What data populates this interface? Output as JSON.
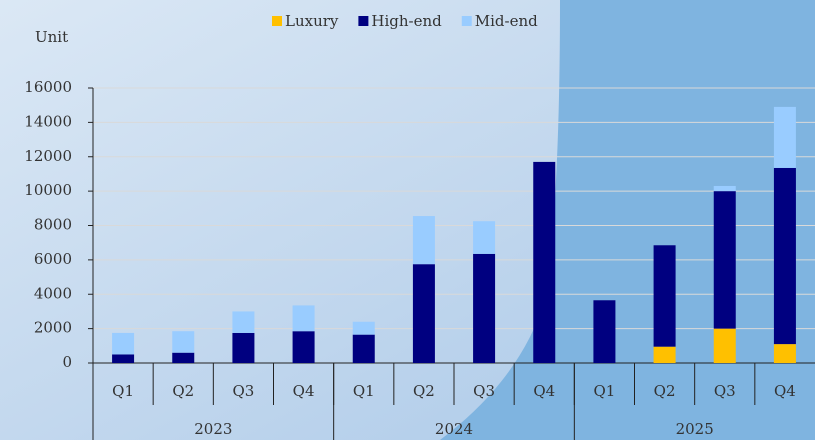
{
  "chart_data": {
    "type": "stacked_bar",
    "y_label": "Unit",
    "categories": [
      "Q1",
      "Q2",
      "Q3",
      "Q4",
      "Q1",
      "Q2",
      "Q3",
      "Q4",
      "Q1",
      "Q2",
      "Q3",
      "Q4"
    ],
    "groups": [
      {
        "label": "2023",
        "span": 4
      },
      {
        "label": "2024",
        "span": 4
      },
      {
        "label": "2025",
        "span": 4
      }
    ],
    "series": [
      {
        "name": "Luxury",
        "color": "#FFC000",
        "values": [
          0,
          0,
          0,
          0,
          0,
          0,
          0,
          0,
          0,
          950,
          2000,
          1100
        ]
      },
      {
        "name": "High-end",
        "color": "#000080",
        "values": [
          500,
          600,
          1750,
          1850,
          1650,
          5750,
          6350,
          11700,
          3650,
          5900,
          8000,
          10250
        ]
      },
      {
        "name": "Mid-end",
        "color": "#99CCFF",
        "values": [
          1250,
          1250,
          1250,
          1500,
          750,
          2800,
          1900,
          0,
          0,
          0,
          300,
          3550
        ]
      }
    ],
    "ylim": [
      0,
      16000
    ],
    "yticks": [
      0,
      2000,
      4000,
      6000,
      8000,
      10000,
      12000,
      14000,
      16000
    ],
    "grid": true,
    "legend": "top"
  }
}
